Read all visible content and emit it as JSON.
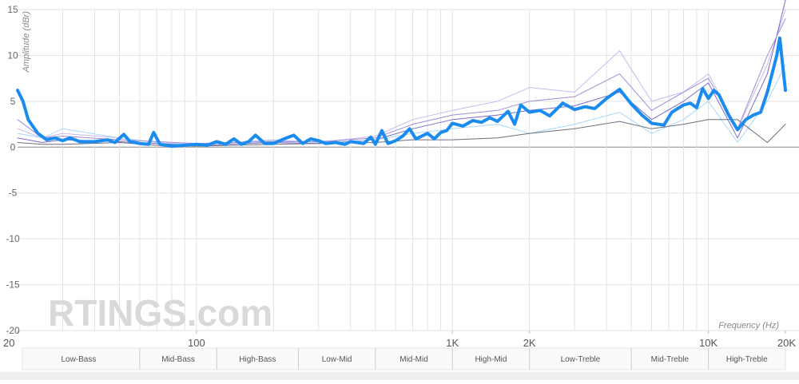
{
  "chart_data": {
    "type": "line",
    "ylabel": "Amplitude (dBr)",
    "xlabel": "Frequency (Hz)",
    "watermark": "RTINGS.com",
    "xscale": "log",
    "xlim": [
      20,
      20000
    ],
    "ylim": [
      -20,
      15
    ],
    "xticks": [
      20,
      100,
      {
        "value": 1000,
        "label": "1K"
      },
      {
        "value": 2000,
        "label": "2K"
      },
      {
        "value": 10000,
        "label": "10K"
      },
      {
        "value": 20000,
        "label": "20K"
      }
    ],
    "xgrid": [
      30,
      40,
      50,
      60,
      70,
      80,
      90,
      100,
      200,
      300,
      400,
      500,
      600,
      700,
      800,
      900,
      1000,
      2000,
      3000,
      4000,
      5000,
      6000,
      7000,
      8000,
      9000,
      10000
    ],
    "yticks": [
      15,
      10,
      5,
      0,
      -5,
      -10,
      -15,
      -20
    ],
    "grid": true,
    "bands": [
      {
        "label": "Low-Bass",
        "from": 20,
        "to": 60
      },
      {
        "label": "Mid-Bass",
        "from": 60,
        "to": 120
      },
      {
        "label": "High-Bass",
        "from": 120,
        "to": 250
      },
      {
        "label": "Low-Mid",
        "from": 250,
        "to": 500
      },
      {
        "label": "Mid-Mid",
        "from": 500,
        "to": 1000
      },
      {
        "label": "High-Mid",
        "from": 1000,
        "to": 2000
      },
      {
        "label": "Low-Treble",
        "from": 2000,
        "to": 5000
      },
      {
        "label": "Mid-Treble",
        "from": 5000,
        "to": 10000
      },
      {
        "label": "High-Treble",
        "from": 10000,
        "to": 20000
      }
    ],
    "series": [
      {
        "color": "#c8b8ee",
        "width": 1,
        "x": [
          20,
          25,
          30,
          50,
          70,
          100,
          200,
          300,
          500,
          700,
          1000,
          1500,
          2000,
          3000,
          4500,
          6000,
          8000,
          10000,
          13000,
          17000,
          20000
        ],
        "values": [
          2,
          1,
          1.5,
          1,
          0.5,
          0.3,
          0.8,
          0.5,
          1.2,
          3,
          4,
          5,
          6.5,
          6,
          10.5,
          5,
          6,
          8,
          2,
          9,
          15
        ]
      },
      {
        "color": "#7b6bc8",
        "width": 1,
        "x": [
          20,
          25,
          30,
          50,
          70,
          100,
          200,
          300,
          500,
          700,
          1000,
          1500,
          2000,
          3000,
          4500,
          6000,
          8000,
          10000,
          13000,
          17000,
          20000
        ],
        "values": [
          1,
          0.5,
          0.8,
          0.6,
          0.4,
          0.2,
          0.5,
          0.4,
          0.8,
          2,
          3,
          3.5,
          4,
          4.5,
          6,
          3,
          5,
          7,
          1,
          8,
          16
        ]
      },
      {
        "color": "#a9d8f7",
        "width": 1,
        "x": [
          20,
          25,
          30,
          50,
          70,
          100,
          200,
          300,
          500,
          700,
          1000,
          1500,
          2000,
          3000,
          4500,
          6000,
          8000,
          10000,
          13000,
          17000,
          20000
        ],
        "values": [
          1.5,
          1,
          2,
          1,
          0.5,
          0.3,
          0.7,
          0.5,
          0.8,
          1.5,
          2,
          2.5,
          1.5,
          2.5,
          3.8,
          1.5,
          3,
          5,
          0.5,
          5,
          9
        ]
      },
      {
        "color": "#6e6e7e",
        "width": 1,
        "x": [
          20,
          25,
          30,
          50,
          70,
          100,
          200,
          300,
          500,
          700,
          1000,
          1500,
          2000,
          3000,
          4500,
          6000,
          8000,
          10000,
          13000,
          17000,
          20000
        ],
        "values": [
          0.5,
          0.3,
          0.3,
          0.5,
          0.2,
          0.1,
          0.3,
          0.4,
          0.5,
          0.8,
          0.8,
          1,
          1.5,
          2,
          2.8,
          2,
          2.5,
          3,
          3,
          0.5,
          2.5
        ]
      },
      {
        "color": "#a48ad8",
        "width": 1,
        "x": [
          20,
          25,
          30,
          50,
          70,
          100,
          200,
          300,
          500,
          700,
          1000,
          1500,
          2000,
          3000,
          4500,
          6000,
          8000,
          10000,
          13000,
          17000,
          20000
        ],
        "values": [
          3,
          1,
          1.2,
          0.8,
          0.6,
          0.4,
          0.6,
          0.6,
          1,
          2.5,
          3.5,
          4,
          5,
          5.5,
          8,
          4,
          6,
          7.5,
          2,
          10,
          14
        ]
      },
      {
        "color": "#1a8cf0",
        "width": 4,
        "x": [
          20,
          21,
          22,
          24,
          26,
          28,
          30,
          32,
          35,
          40,
          45,
          48,
          52,
          55,
          60,
          65,
          68,
          72,
          80,
          90,
          100,
          110,
          120,
          130,
          140,
          150,
          160,
          170,
          185,
          200,
          220,
          240,
          260,
          280,
          300,
          320,
          350,
          380,
          400,
          450,
          480,
          500,
          530,
          560,
          600,
          640,
          680,
          720,
          800,
          850,
          900,
          950,
          1000,
          1100,
          1200,
          1300,
          1400,
          1500,
          1650,
          1750,
          1850,
          2000,
          2200,
          2400,
          2700,
          3000,
          3300,
          3600,
          4000,
          4500,
          5000,
          5500,
          6000,
          6700,
          7200,
          8000,
          8500,
          9000,
          9500,
          10000,
          10500,
          11000,
          12000,
          13000,
          14000,
          15000,
          16000,
          17000,
          18500,
          19000,
          20000
        ],
        "values": [
          6.2,
          5,
          3,
          1.5,
          0.8,
          1.0,
          0.7,
          1.0,
          0.6,
          0.6,
          0.8,
          0.5,
          1.4,
          0.6,
          0.4,
          0.3,
          1.6,
          0.3,
          0.1,
          0.2,
          0.3,
          0.2,
          0.6,
          0.3,
          0.9,
          0.3,
          0.6,
          1.3,
          0.4,
          0.4,
          0.9,
          1.3,
          0.4,
          0.9,
          0.7,
          0.4,
          0.5,
          0.3,
          0.6,
          0.4,
          1.1,
          0.3,
          1.8,
          0.4,
          0.7,
          1.2,
          2.0,
          0.9,
          1.5,
          0.9,
          1.6,
          1.8,
          2.6,
          2.3,
          2.9,
          2.7,
          3.2,
          2.8,
          3.9,
          2.5,
          4.6,
          3.8,
          4.0,
          3.4,
          4.8,
          4.1,
          4.4,
          4.2,
          5.3,
          6.3,
          4.7,
          3.5,
          2.6,
          2.4,
          3.8,
          4.6,
          4.8,
          4.3,
          6.4,
          5.3,
          6.2,
          5.7,
          3.5,
          1.9,
          3.0,
          3.5,
          3.8,
          6,
          10,
          11.9,
          6.2
        ]
      }
    ]
  }
}
